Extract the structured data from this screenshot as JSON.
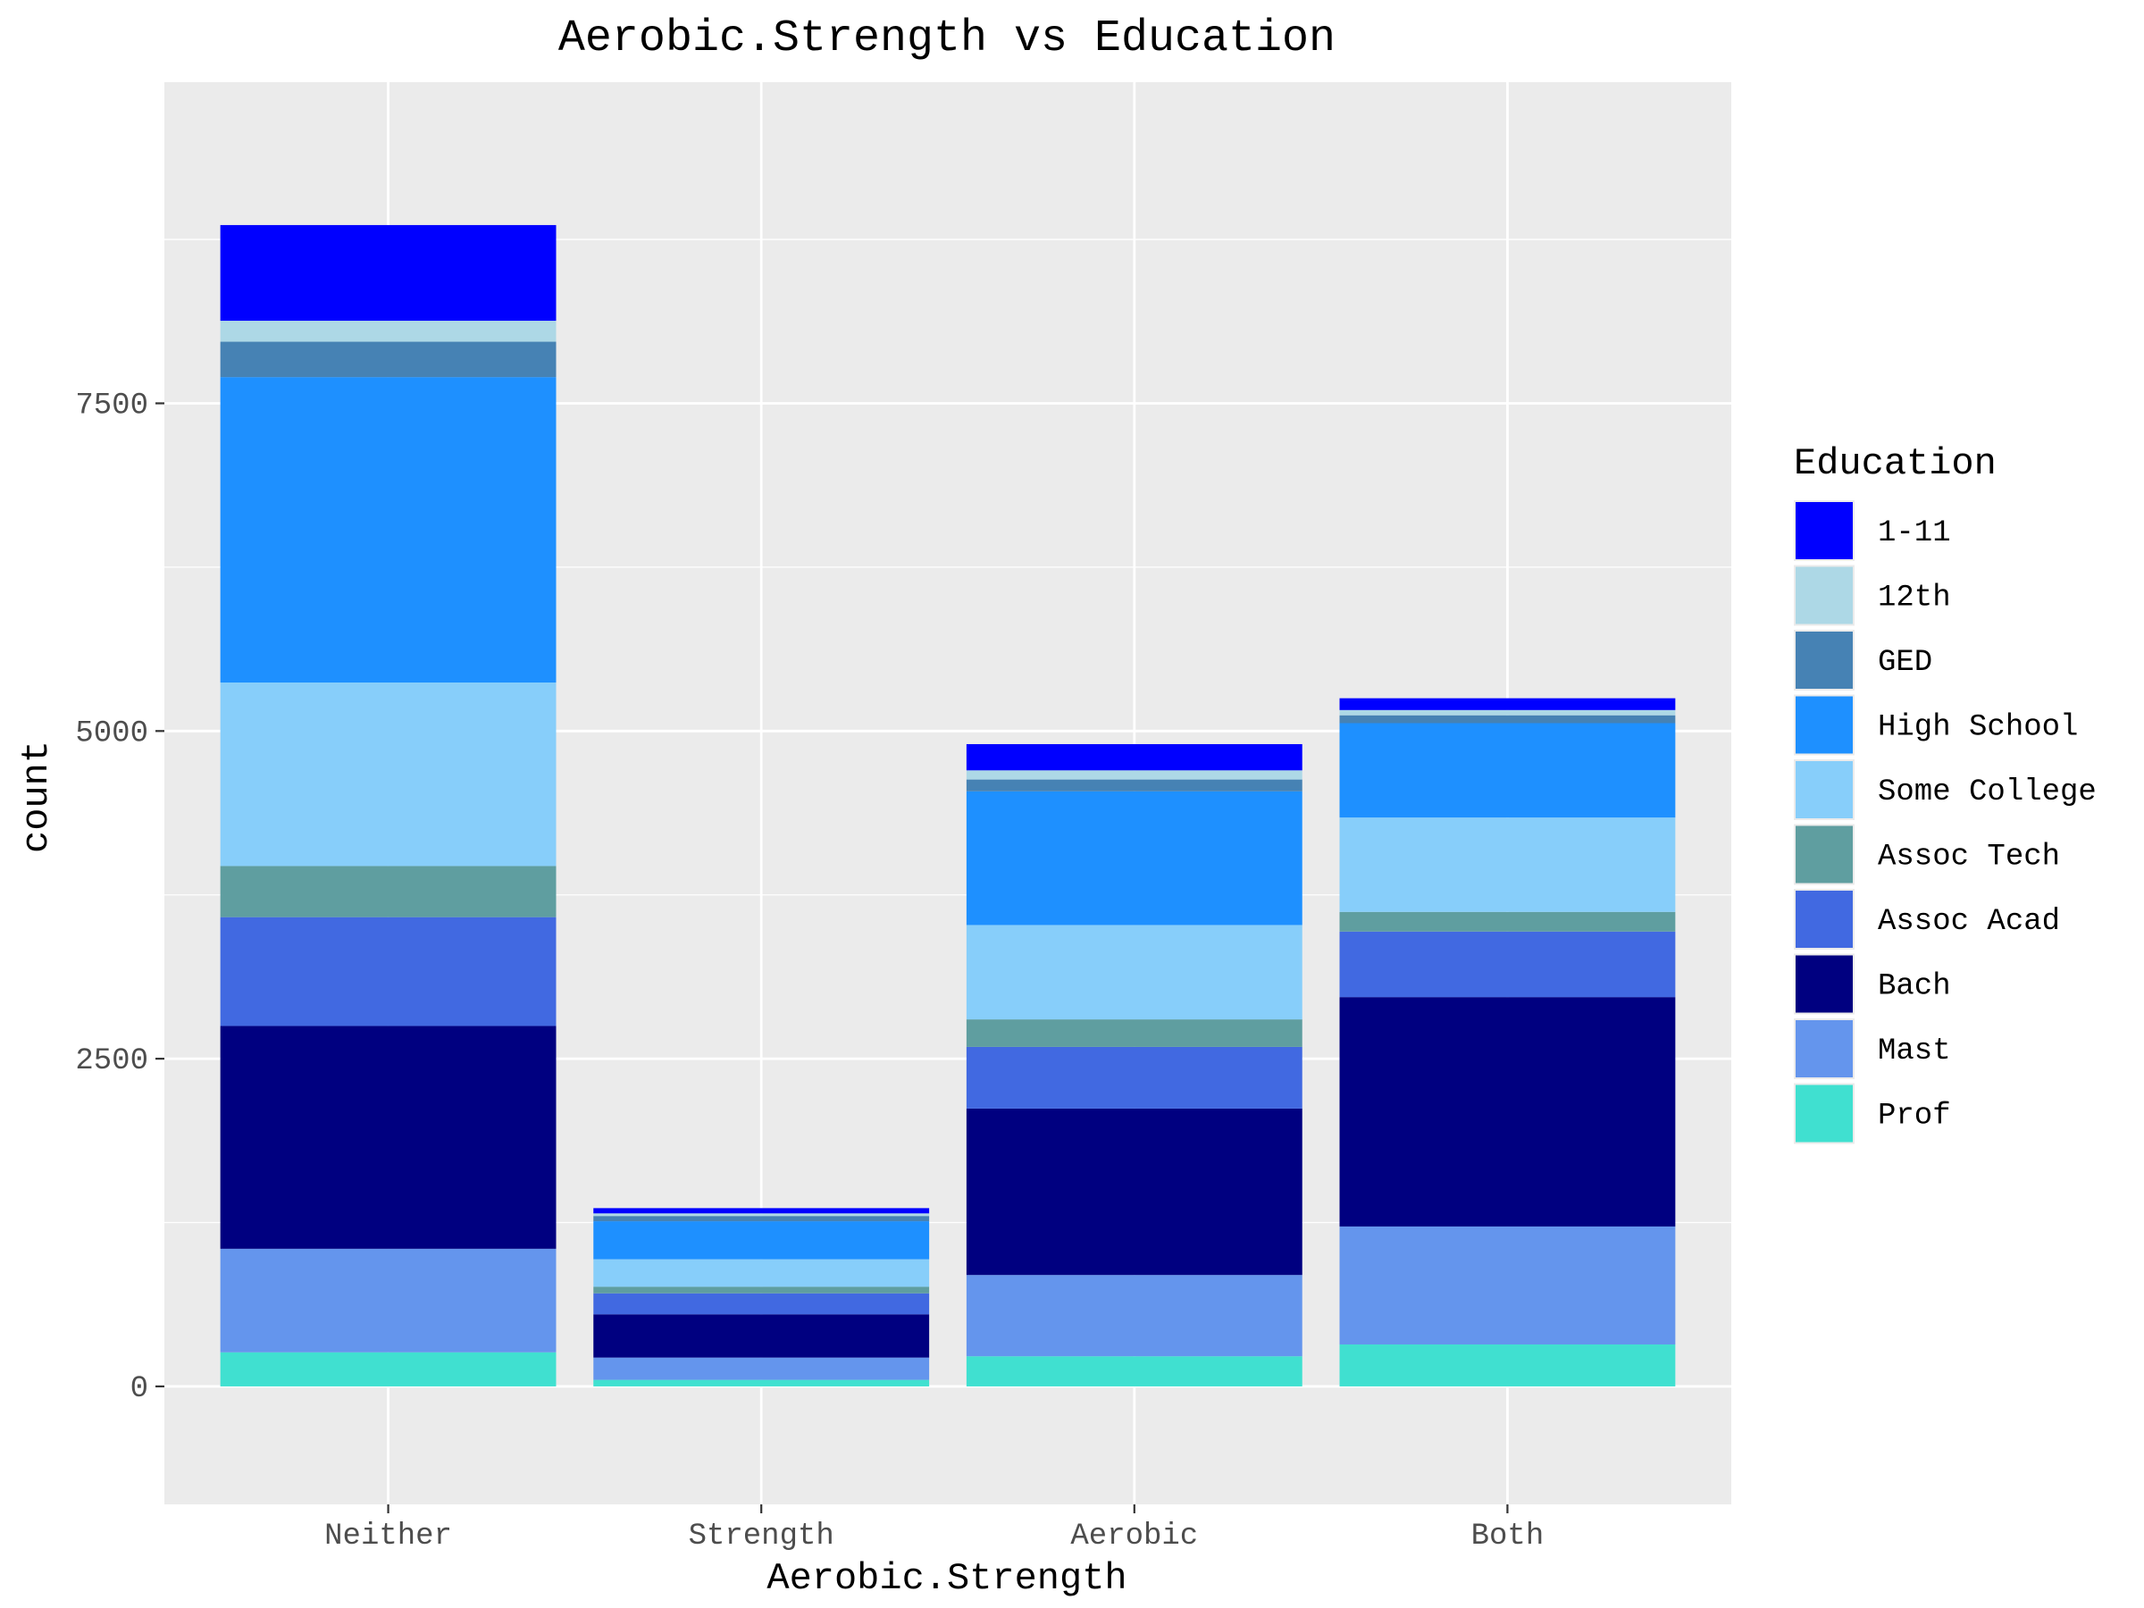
{
  "chart_data": {
    "type": "bar",
    "stacked": true,
    "title": "Aerobic.Strength vs Education",
    "xlabel": "Aerobic.Strength",
    "ylabel": "count",
    "categories": [
      "Neither",
      "Strength",
      "Aerobic",
      "Both"
    ],
    "ylim": [
      -900,
      9950
    ],
    "yticks": [
      0,
      2500,
      5000,
      7500
    ],
    "ytick_labels": [
      "0",
      "2500",
      "5000",
      "7500"
    ],
    "legend_title": "Education",
    "legend_position": "right",
    "grid": true,
    "series": [
      {
        "name": "Prof",
        "color": "#40E0D0",
        "values": [
          260,
          50,
          230,
          320
        ]
      },
      {
        "name": "Mast",
        "color": "#6495ED",
        "values": [
          790,
          170,
          620,
          900
        ]
      },
      {
        "name": "Bach",
        "color": "#000080",
        "values": [
          1700,
          330,
          1270,
          1750
        ]
      },
      {
        "name": "Assoc Acad",
        "color": "#4169E1",
        "values": [
          830,
          160,
          470,
          500
        ]
      },
      {
        "name": "Assoc Tech",
        "color": "#5F9EA0",
        "values": [
          390,
          50,
          210,
          150
        ]
      },
      {
        "name": "Some College",
        "color": "#87CEFA",
        "values": [
          1400,
          210,
          720,
          720
        ]
      },
      {
        "name": "High School",
        "color": "#1E90FF",
        "values": [
          2330,
          290,
          1020,
          720
        ]
      },
      {
        "name": "GED",
        "color": "#4682B4",
        "values": [
          270,
          40,
          90,
          60
        ]
      },
      {
        "name": "12th",
        "color": "#ADD8E6",
        "values": [
          160,
          20,
          70,
          40
        ]
      },
      {
        "name": "1-11",
        "color": "#0000FF",
        "values": [
          730,
          40,
          200,
          90
        ]
      }
    ],
    "legend_order": [
      "1-11",
      "12th",
      "GED",
      "High School",
      "Some College",
      "Assoc Tech",
      "Assoc Acad",
      "Bach",
      "Mast",
      "Prof"
    ]
  },
  "colors": {
    "panel_background": "#EBEBEB",
    "grid_major": "#FFFFFF",
    "tick_text": "#4D4D4D"
  }
}
